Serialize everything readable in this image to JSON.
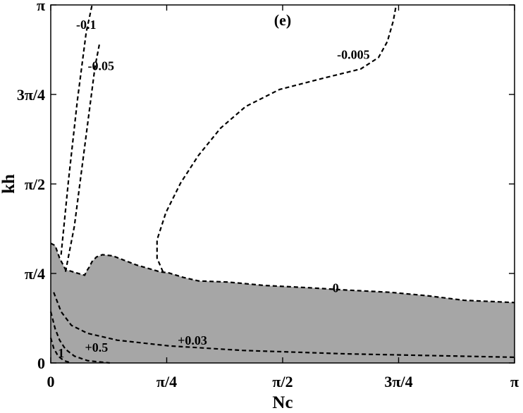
{
  "chart_data": {
    "type": "contour",
    "title": "",
    "panel_label": "(e)",
    "xlabel": "Nc",
    "ylabel": "kh",
    "xlim": [
      0,
      3.14159
    ],
    "ylim": [
      0,
      3.14159
    ],
    "xticks": [
      {
        "value": 0,
        "label": "0"
      },
      {
        "value": 0.7854,
        "label": "π/4"
      },
      {
        "value": 1.5708,
        "label": "π/2"
      },
      {
        "value": 2.3562,
        "label": "3π/4"
      },
      {
        "value": 3.14159,
        "label": "π"
      }
    ],
    "yticks": [
      {
        "value": 0,
        "label": "0"
      },
      {
        "value": 0.7854,
        "label": "π/4"
      },
      {
        "value": 1.5708,
        "label": "π/2"
      },
      {
        "value": 2.3562,
        "label": "3π/4"
      },
      {
        "value": 3.14159,
        "label": "π"
      }
    ],
    "shaded_region": {
      "color": "#a6a6a6",
      "boundary": [
        [
          0.0,
          1.05
        ],
        [
          0.03,
          1.03
        ],
        [
          0.06,
          0.92
        ],
        [
          0.1,
          0.82
        ],
        [
          0.15,
          0.8
        ],
        [
          0.2,
          0.78
        ],
        [
          0.23,
          0.77
        ],
        [
          0.24,
          0.8
        ],
        [
          0.26,
          0.84
        ],
        [
          0.28,
          0.89
        ],
        [
          0.31,
          0.93
        ],
        [
          0.35,
          0.95
        ],
        [
          0.42,
          0.94
        ],
        [
          0.5,
          0.9
        ],
        [
          0.58,
          0.86
        ],
        [
          0.66,
          0.83
        ],
        [
          0.74,
          0.8
        ],
        [
          0.8,
          0.79
        ],
        [
          0.9,
          0.75
        ],
        [
          1.0,
          0.72
        ],
        [
          1.2,
          0.71
        ],
        [
          1.45,
          0.68
        ],
        [
          1.75,
          0.66
        ],
        [
          2.0,
          0.64
        ],
        [
          2.3,
          0.62
        ],
        [
          2.55,
          0.59
        ],
        [
          2.8,
          0.55
        ],
        [
          3.14159,
          0.53
        ]
      ]
    },
    "contours": [
      {
        "level": "-0.1",
        "points": [
          [
            0.07,
            0.95
          ],
          [
            0.12,
            1.6
          ],
          [
            0.18,
            2.3
          ],
          [
            0.24,
            2.9
          ],
          [
            0.28,
            3.14159
          ]
        ]
      },
      {
        "level": "-0.05",
        "points": [
          [
            0.1,
            0.8
          ],
          [
            0.16,
            1.2
          ],
          [
            0.21,
            1.7
          ],
          [
            0.26,
            2.2
          ],
          [
            0.3,
            2.6
          ],
          [
            0.33,
            2.8
          ]
        ]
      },
      {
        "level": "-0.005",
        "points": [
          [
            0.76,
            0.8
          ],
          [
            0.72,
            0.92
          ],
          [
            0.72,
            1.08
          ],
          [
            0.78,
            1.32
          ],
          [
            0.88,
            1.58
          ],
          [
            1.0,
            1.82
          ],
          [
            1.15,
            2.06
          ],
          [
            1.32,
            2.25
          ],
          [
            1.55,
            2.4
          ],
          [
            1.85,
            2.5
          ],
          [
            2.1,
            2.58
          ],
          [
            2.22,
            2.68
          ],
          [
            2.28,
            2.82
          ],
          [
            2.32,
            3.0
          ],
          [
            2.34,
            3.14159
          ]
        ]
      },
      {
        "level": "0",
        "points": [
          [
            0.0,
            1.05
          ],
          [
            0.03,
            1.03
          ],
          [
            0.06,
            0.92
          ],
          [
            0.1,
            0.82
          ],
          [
            0.15,
            0.8
          ],
          [
            0.2,
            0.78
          ],
          [
            0.23,
            0.77
          ],
          [
            0.24,
            0.8
          ],
          [
            0.26,
            0.84
          ],
          [
            0.28,
            0.89
          ],
          [
            0.31,
            0.93
          ],
          [
            0.35,
            0.95
          ],
          [
            0.42,
            0.94
          ],
          [
            0.5,
            0.9
          ],
          [
            0.58,
            0.86
          ],
          [
            0.66,
            0.83
          ],
          [
            0.74,
            0.8
          ],
          [
            0.8,
            0.79
          ],
          [
            0.9,
            0.75
          ],
          [
            1.0,
            0.72
          ],
          [
            1.2,
            0.71
          ],
          [
            1.45,
            0.68
          ],
          [
            1.75,
            0.66
          ],
          [
            2.0,
            0.64
          ],
          [
            2.3,
            0.62
          ],
          [
            2.55,
            0.59
          ],
          [
            2.8,
            0.55
          ],
          [
            3.14159,
            0.53
          ]
        ]
      },
      {
        "level": "+0.03",
        "points": [
          [
            0.02,
            0.62
          ],
          [
            0.07,
            0.45
          ],
          [
            0.14,
            0.33
          ],
          [
            0.25,
            0.26
          ],
          [
            0.45,
            0.2
          ],
          [
            0.8,
            0.15
          ],
          [
            1.3,
            0.11
          ],
          [
            2.0,
            0.08
          ],
          [
            3.14159,
            0.05
          ]
        ]
      },
      {
        "level": "+0.5",
        "points": [
          [
            0.0,
            0.45
          ],
          [
            0.03,
            0.3
          ],
          [
            0.06,
            0.2
          ],
          [
            0.1,
            0.12
          ],
          [
            0.16,
            0.06
          ],
          [
            0.25,
            0.02
          ],
          [
            0.4,
            0.0
          ]
        ]
      },
      {
        "level": "1",
        "points": [
          [
            0.0,
            0.22
          ],
          [
            0.02,
            0.13
          ],
          [
            0.05,
            0.06
          ],
          [
            0.09,
            0.02
          ],
          [
            0.14,
            0.0
          ]
        ]
      }
    ],
    "contour_labels": [
      {
        "text": "-0.1",
        "x": 0.24,
        "y": 2.93
      },
      {
        "text": "-0.05",
        "x": 0.34,
        "y": 2.57
      },
      {
        "text": "-0.005",
        "x": 2.05,
        "y": 2.67
      },
      {
        "text": "0",
        "x": 1.93,
        "y": 0.62
      },
      {
        "text": "+0.03",
        "x": 0.96,
        "y": 0.16
      },
      {
        "text": "+0.5",
        "x": 0.31,
        "y": 0.1
      },
      {
        "text": "1",
        "x": 0.07,
        "y": 0.05
      }
    ],
    "grid": false
  }
}
